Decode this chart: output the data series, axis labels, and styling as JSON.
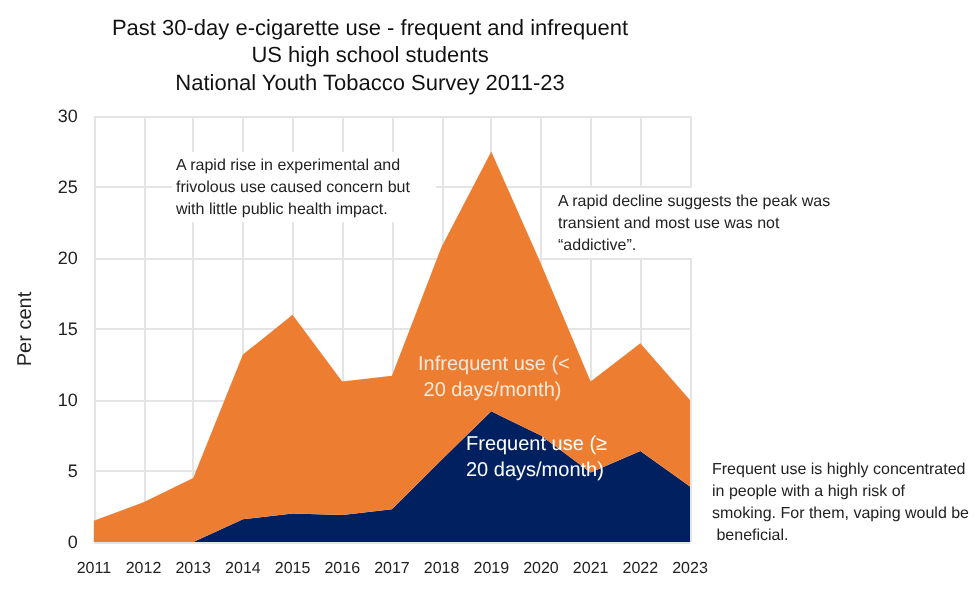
{
  "chart_data": {
    "type": "area",
    "stacked": true,
    "title": "Past 30-day e-cigarette use - frequent and infrequent",
    "subtitle": "US high school students\nNational Youth Tobacco Survey 2011-23",
    "ylabel": "Per cent",
    "categories": [
      "2011",
      "2012",
      "2013",
      "2014",
      "2015",
      "2016",
      "2017",
      "2018",
      "2019",
      "2020",
      "2021",
      "2022",
      "2023"
    ],
    "series": [
      {
        "name": "Frequent use (≥ 20 days/month)",
        "color": "#002060",
        "values": [
          0,
          0,
          0,
          1.6,
          2.0,
          1.9,
          2.3,
          5.8,
          9.2,
          7.5,
          4.9,
          6.4,
          3.9
        ]
      },
      {
        "name": "Infrequent use (< 20 days/month)",
        "color": "#ed7d31",
        "values": [
          1.5,
          2.8,
          4.5,
          11.6,
          14.0,
          9.4,
          9.4,
          15.0,
          18.3,
          12.1,
          6.4,
          7.6,
          6.1
        ]
      }
    ],
    "ylim": [
      0,
      30
    ],
    "yticks": [
      0,
      5,
      10,
      15,
      20,
      25,
      30
    ],
    "grid": true,
    "legend": false,
    "annotations": [
      "A rapid rise in experimental and frivolous use caused concern but with little public health impact.",
      "A rapid decline suggests the peak was transient and most use was not “addictive”.",
      "Frequent use is highly concentrated in people with a high risk of smoking. For them, vaping would be beneficial."
    ]
  }
}
